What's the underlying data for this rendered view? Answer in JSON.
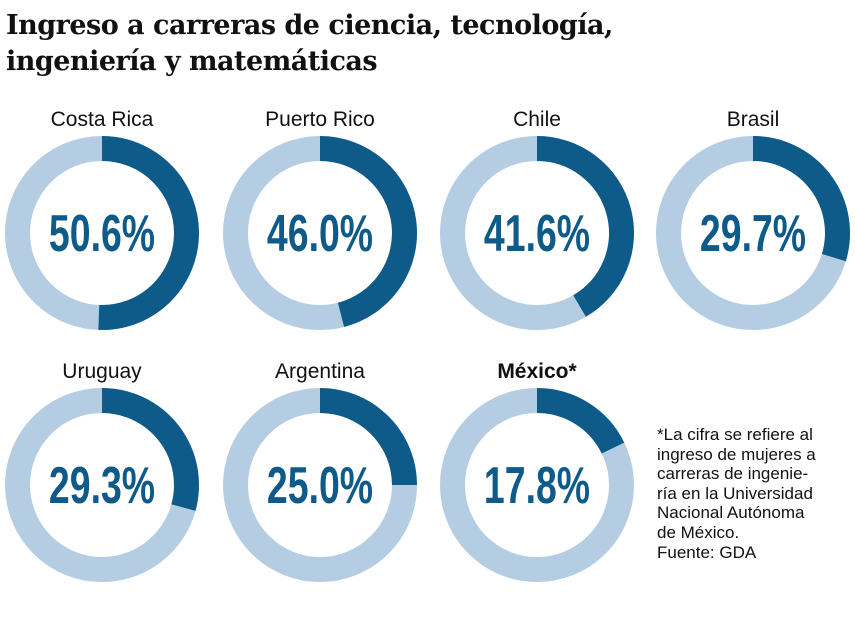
{
  "title_lines": [
    "Ingreso a carreras de ciencia, tecnología,",
    "ingeniería y matemáticas"
  ],
  "colors": {
    "filled": "#0e5a89",
    "remaining": "#b5cde3",
    "text": "#0e5a89"
  },
  "chart_data": {
    "type": "pie",
    "subtype": "donut",
    "unit": "%",
    "categories": [
      "Costa Rica",
      "Puerto Rico",
      "Chile",
      "Brasil",
      "Uruguay",
      "Argentina",
      "México*"
    ],
    "values": [
      50.6,
      46.0,
      41.6,
      29.7,
      29.3,
      25.0,
      17.8
    ],
    "labels": [
      "50.6%",
      "46.0%",
      "41.6%",
      "29.7%",
      "29.3%",
      "25.0%",
      "17.8%"
    ],
    "highlighted": [
      "México*"
    ]
  },
  "footnote_lines": [
    "*La cifra se refiere al",
    "ingreso de mujeres a",
    "carreras de ingenie-",
    "ría en la Universidad",
    "Nacional Autónoma",
    "de México."
  ],
  "source": "Fuente: GDA"
}
